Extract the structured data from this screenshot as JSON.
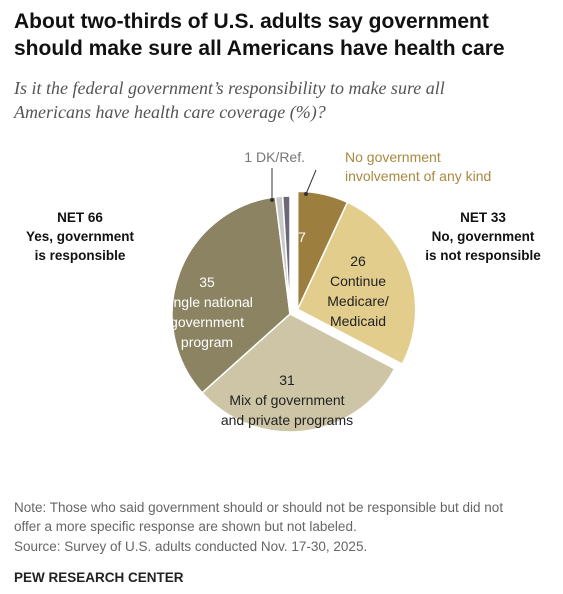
{
  "chart_data": {
    "type": "pie",
    "title": "About two-thirds of U.S. adults say government\nshould make sure all Americans have health care",
    "subtitle": "Is it the federal government’s responsibility to make sure all\nAmericans have health care coverage (%)?",
    "categories": [
      "No government\ninvolvement of any kind",
      "Continue\nMedicare/\nMedicaid",
      "Mix of government\nand private programs",
      "Single national\ngovernment\nprogram",
      null,
      "DK/Ref."
    ],
    "values": [
      7,
      26,
      31,
      35,
      1,
      1
    ],
    "colors": [
      "#9c7f3e",
      "#e2cd8c",
      "#cdc5a6",
      "#8b8361",
      "#c8c8c8",
      "#6d6878"
    ],
    "exploded": [
      true,
      true,
      false,
      false,
      false,
      false
    ],
    "annotations": [
      "NET 66\nYes, government\nis responsible",
      "NET 33\nNo, government\nis not responsible"
    ],
    "note": "Note: Those who said government should or should not be responsible but did not\noffer a more specific response are shown but not labeled.",
    "source": "Source: Survey of U.S. adults conducted Nov. 17-30, 2025.",
    "footer": "PEW RESEARCH CENTER"
  }
}
